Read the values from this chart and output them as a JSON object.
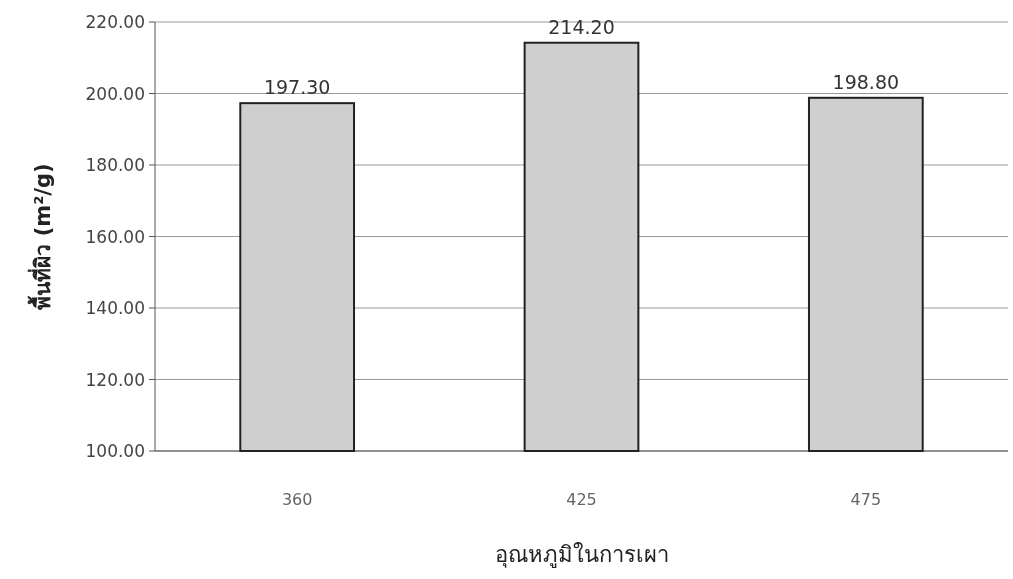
{
  "chart_data": {
    "type": "bar",
    "xlabel": "อุณหภูมิในการเผา",
    "ylabel": "พื้นที่ผิว (m²/g)",
    "categories": [
      "360",
      "425",
      "475"
    ],
    "values": [
      197.3,
      214.2,
      198.8
    ],
    "value_labels": [
      "197.30",
      "214.20",
      "198.80"
    ],
    "color": "#cfcfcf",
    "ylim": [
      100,
      220
    ],
    "yticks": [
      {
        "value": 100,
        "label": "100.00"
      },
      {
        "value": 120,
        "label": "120.00"
      },
      {
        "value": 140,
        "label": "140.00"
      },
      {
        "value": 160,
        "label": "160.00"
      },
      {
        "value": 180,
        "label": "180.00"
      },
      {
        "value": 200,
        "label": "200.00"
      },
      {
        "value": 220,
        "label": "220.00"
      }
    ],
    "grid": "y"
  }
}
